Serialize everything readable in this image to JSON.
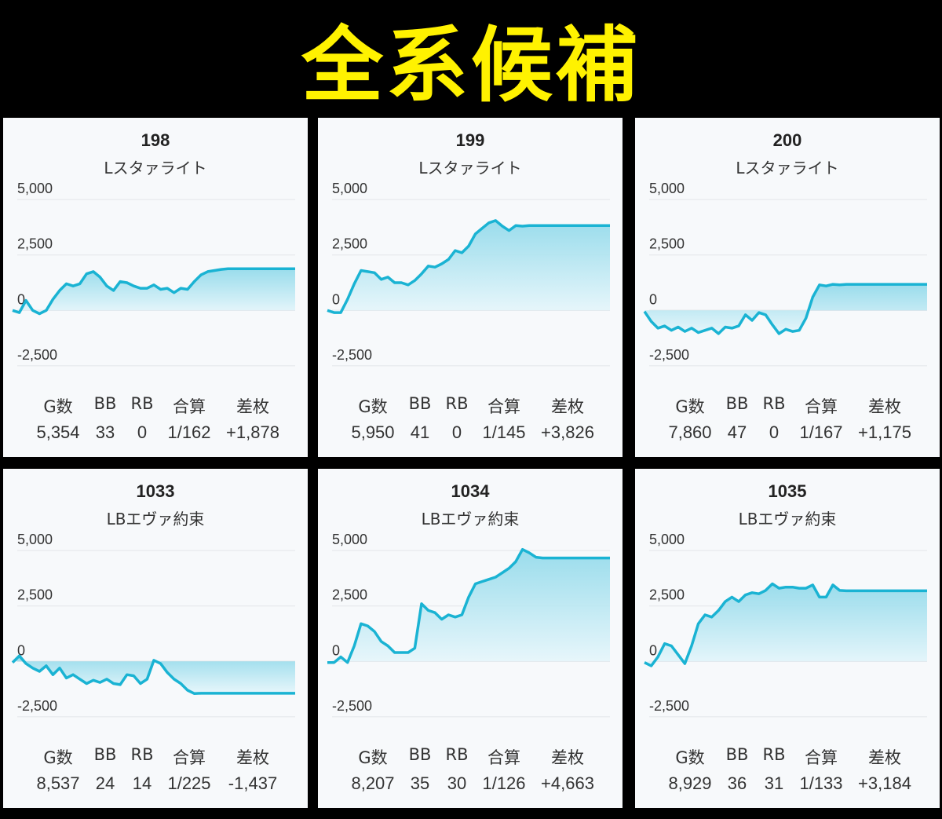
{
  "banner": {
    "title": "全系候補"
  },
  "colors": {
    "line": "#1ab3d3",
    "fill_top": "#8fd9ea",
    "fill_bottom": "#e6f6fb",
    "grid": "#e3e6ea",
    "axis_text": "#333333"
  },
  "stats_labels": [
    "G数",
    "BB",
    "RB",
    "合算",
    "差枚"
  ],
  "panels": [
    {
      "number": "198",
      "machine": "Lスタァライト",
      "stats": [
        "5,354",
        "33",
        "0",
        "1/162",
        "+1,878"
      ]
    },
    {
      "number": "199",
      "machine": "Lスタァライト",
      "stats": [
        "5,950",
        "41",
        "0",
        "1/145",
        "+3,826"
      ]
    },
    {
      "number": "200",
      "machine": "Lスタァライト",
      "stats": [
        "7,860",
        "47",
        "0",
        "1/167",
        "+1,175"
      ]
    },
    {
      "number": "1033",
      "machine": "LBエヴァ約束",
      "stats": [
        "8,537",
        "24",
        "14",
        "1/225",
        "-1,437"
      ]
    },
    {
      "number": "1034",
      "machine": "LBエヴァ約束",
      "stats": [
        "8,207",
        "35",
        "30",
        "1/126",
        "+4,663"
      ]
    },
    {
      "number": "1035",
      "machine": "LBエヴァ約束",
      "stats": [
        "8,929",
        "36",
        "31",
        "1/133",
        "+3,184"
      ]
    }
  ],
  "chart_data": [
    {
      "type": "area",
      "title": "198",
      "ylim": [
        -3000,
        5500
      ],
      "yticks": [
        "5,000",
        "2,500",
        "0",
        "-2,500"
      ],
      "x": [
        0,
        1,
        2,
        3,
        4,
        5,
        6,
        7,
        8,
        9,
        10,
        11,
        12,
        13,
        14,
        15,
        16,
        17,
        18,
        19,
        20,
        21,
        22,
        23,
        24,
        25,
        26,
        27,
        28,
        29,
        30,
        31,
        32,
        33,
        34,
        35,
        36,
        37,
        38,
        39,
        40,
        41,
        42
      ],
      "y": [
        0,
        -100,
        450,
        0,
        -150,
        0,
        500,
        900,
        1200,
        1100,
        1200,
        1650,
        1750,
        1500,
        1100,
        900,
        1300,
        1250,
        1100,
        1000,
        1000,
        1150,
        950,
        1000,
        800,
        1000,
        950,
        1300,
        1600,
        1750,
        1800,
        1850,
        1878,
        1878,
        1878,
        1878,
        1878,
        1878,
        1878,
        1878,
        1878,
        1878,
        1878
      ]
    },
    {
      "type": "area",
      "title": "199",
      "ylim": [
        -3000,
        5500
      ],
      "yticks": [
        "5,000",
        "2,500",
        "0",
        "-2,500"
      ],
      "x": [
        0,
        1,
        2,
        3,
        4,
        5,
        6,
        7,
        8,
        9,
        10,
        11,
        12,
        13,
        14,
        15,
        16,
        17,
        18,
        19,
        20,
        21,
        22,
        23,
        24,
        25,
        26,
        27,
        28,
        29,
        30,
        31,
        32,
        33,
        34,
        35,
        36,
        37,
        38,
        39,
        40,
        41,
        42
      ],
      "y": [
        0,
        -100,
        -100,
        500,
        1200,
        1800,
        1750,
        1700,
        1400,
        1500,
        1250,
        1250,
        1150,
        1350,
        1650,
        2000,
        1950,
        2100,
        2300,
        2700,
        2600,
        2900,
        3450,
        3700,
        3950,
        4050,
        3800,
        3600,
        3826,
        3800,
        3826,
        3826,
        3826,
        3826,
        3826,
        3826,
        3826,
        3826,
        3826,
        3826,
        3826,
        3826,
        3826
      ]
    },
    {
      "type": "area",
      "title": "200",
      "ylim": [
        -3000,
        5500
      ],
      "yticks": [
        "5,000",
        "2,500",
        "0",
        "-2,500"
      ],
      "x": [
        0,
        1,
        2,
        3,
        4,
        5,
        6,
        7,
        8,
        9,
        10,
        11,
        12,
        13,
        14,
        15,
        16,
        17,
        18,
        19,
        20,
        21,
        22,
        23,
        24,
        25,
        26,
        27,
        28,
        29,
        30,
        31,
        32,
        33,
        34,
        35,
        36,
        37,
        38,
        39,
        40,
        41,
        42
      ],
      "y": [
        -50,
        -500,
        -800,
        -700,
        -900,
        -750,
        -950,
        -800,
        -1000,
        -900,
        -800,
        -1050,
        -750,
        -800,
        -700,
        -200,
        -450,
        -100,
        -200,
        -650,
        -1050,
        -850,
        -950,
        -900,
        -350,
        600,
        1150,
        1100,
        1175,
        1150,
        1175,
        1175,
        1175,
        1175,
        1175,
        1175,
        1175,
        1175,
        1175,
        1175,
        1175,
        1175,
        1175
      ]
    },
    {
      "type": "area",
      "title": "1033",
      "ylim": [
        -3000,
        5500
      ],
      "yticks": [
        "5,000",
        "2,500",
        "0",
        "-2,500"
      ],
      "x": [
        0,
        1,
        2,
        3,
        4,
        5,
        6,
        7,
        8,
        9,
        10,
        11,
        12,
        13,
        14,
        15,
        16,
        17,
        18,
        19,
        20,
        21,
        22,
        23,
        24,
        25,
        26,
        27,
        28,
        29,
        30,
        31,
        32,
        33,
        34,
        35,
        36,
        37,
        38,
        39,
        40,
        41,
        42
      ],
      "y": [
        -50,
        250,
        -100,
        -300,
        -450,
        -200,
        -600,
        -300,
        -750,
        -600,
        -800,
        -1000,
        -850,
        -950,
        -800,
        -1000,
        -1050,
        -600,
        -650,
        -1000,
        -800,
        50,
        -100,
        -500,
        -800,
        -1000,
        -1300,
        -1450,
        -1437,
        -1437,
        -1437,
        -1437,
        -1437,
        -1437,
        -1437,
        -1437,
        -1437,
        -1437,
        -1437,
        -1437,
        -1437,
        -1437,
        -1437
      ]
    },
    {
      "type": "area",
      "title": "1034",
      "ylim": [
        -3000,
        5500
      ],
      "yticks": [
        "5,000",
        "2,500",
        "0",
        "-2,500"
      ],
      "x": [
        0,
        1,
        2,
        3,
        4,
        5,
        6,
        7,
        8,
        9,
        10,
        11,
        12,
        13,
        14,
        15,
        16,
        17,
        18,
        19,
        20,
        21,
        22,
        23,
        24,
        25,
        26,
        27,
        28,
        29,
        30,
        31,
        32,
        33,
        34,
        35,
        36,
        37,
        38,
        39,
        40,
        41,
        42
      ],
      "y": [
        -50,
        -50,
        200,
        -50,
        700,
        1700,
        1600,
        1350,
        900,
        700,
        400,
        400,
        400,
        600,
        2600,
        2300,
        2200,
        1900,
        2100,
        2000,
        2100,
        2900,
        3500,
        3600,
        3700,
        3800,
        4000,
        4200,
        4500,
        5050,
        4900,
        4700,
        4663,
        4663,
        4663,
        4663,
        4663,
        4663,
        4663,
        4663,
        4663,
        4663,
        4663
      ]
    },
    {
      "type": "area",
      "title": "1035",
      "ylim": [
        -3000,
        5500
      ],
      "yticks": [
        "5,000",
        "2,500",
        "0",
        "-2,500"
      ],
      "x": [
        0,
        1,
        2,
        3,
        4,
        5,
        6,
        7,
        8,
        9,
        10,
        11,
        12,
        13,
        14,
        15,
        16,
        17,
        18,
        19,
        20,
        21,
        22,
        23,
        24,
        25,
        26,
        27,
        28,
        29,
        30,
        31,
        32,
        33,
        34,
        35,
        36,
        37,
        38,
        39,
        40,
        41,
        42
      ],
      "y": [
        -50,
        -200,
        200,
        800,
        700,
        300,
        -100,
        700,
        1700,
        2100,
        2000,
        2300,
        2700,
        2900,
        2700,
        3000,
        3100,
        3050,
        3200,
        3500,
        3300,
        3350,
        3350,
        3300,
        3300,
        3450,
        2900,
        2900,
        3450,
        3200,
        3184,
        3184,
        3184,
        3184,
        3184,
        3184,
        3184,
        3184,
        3184,
        3184,
        3184,
        3184,
        3184
      ]
    }
  ]
}
